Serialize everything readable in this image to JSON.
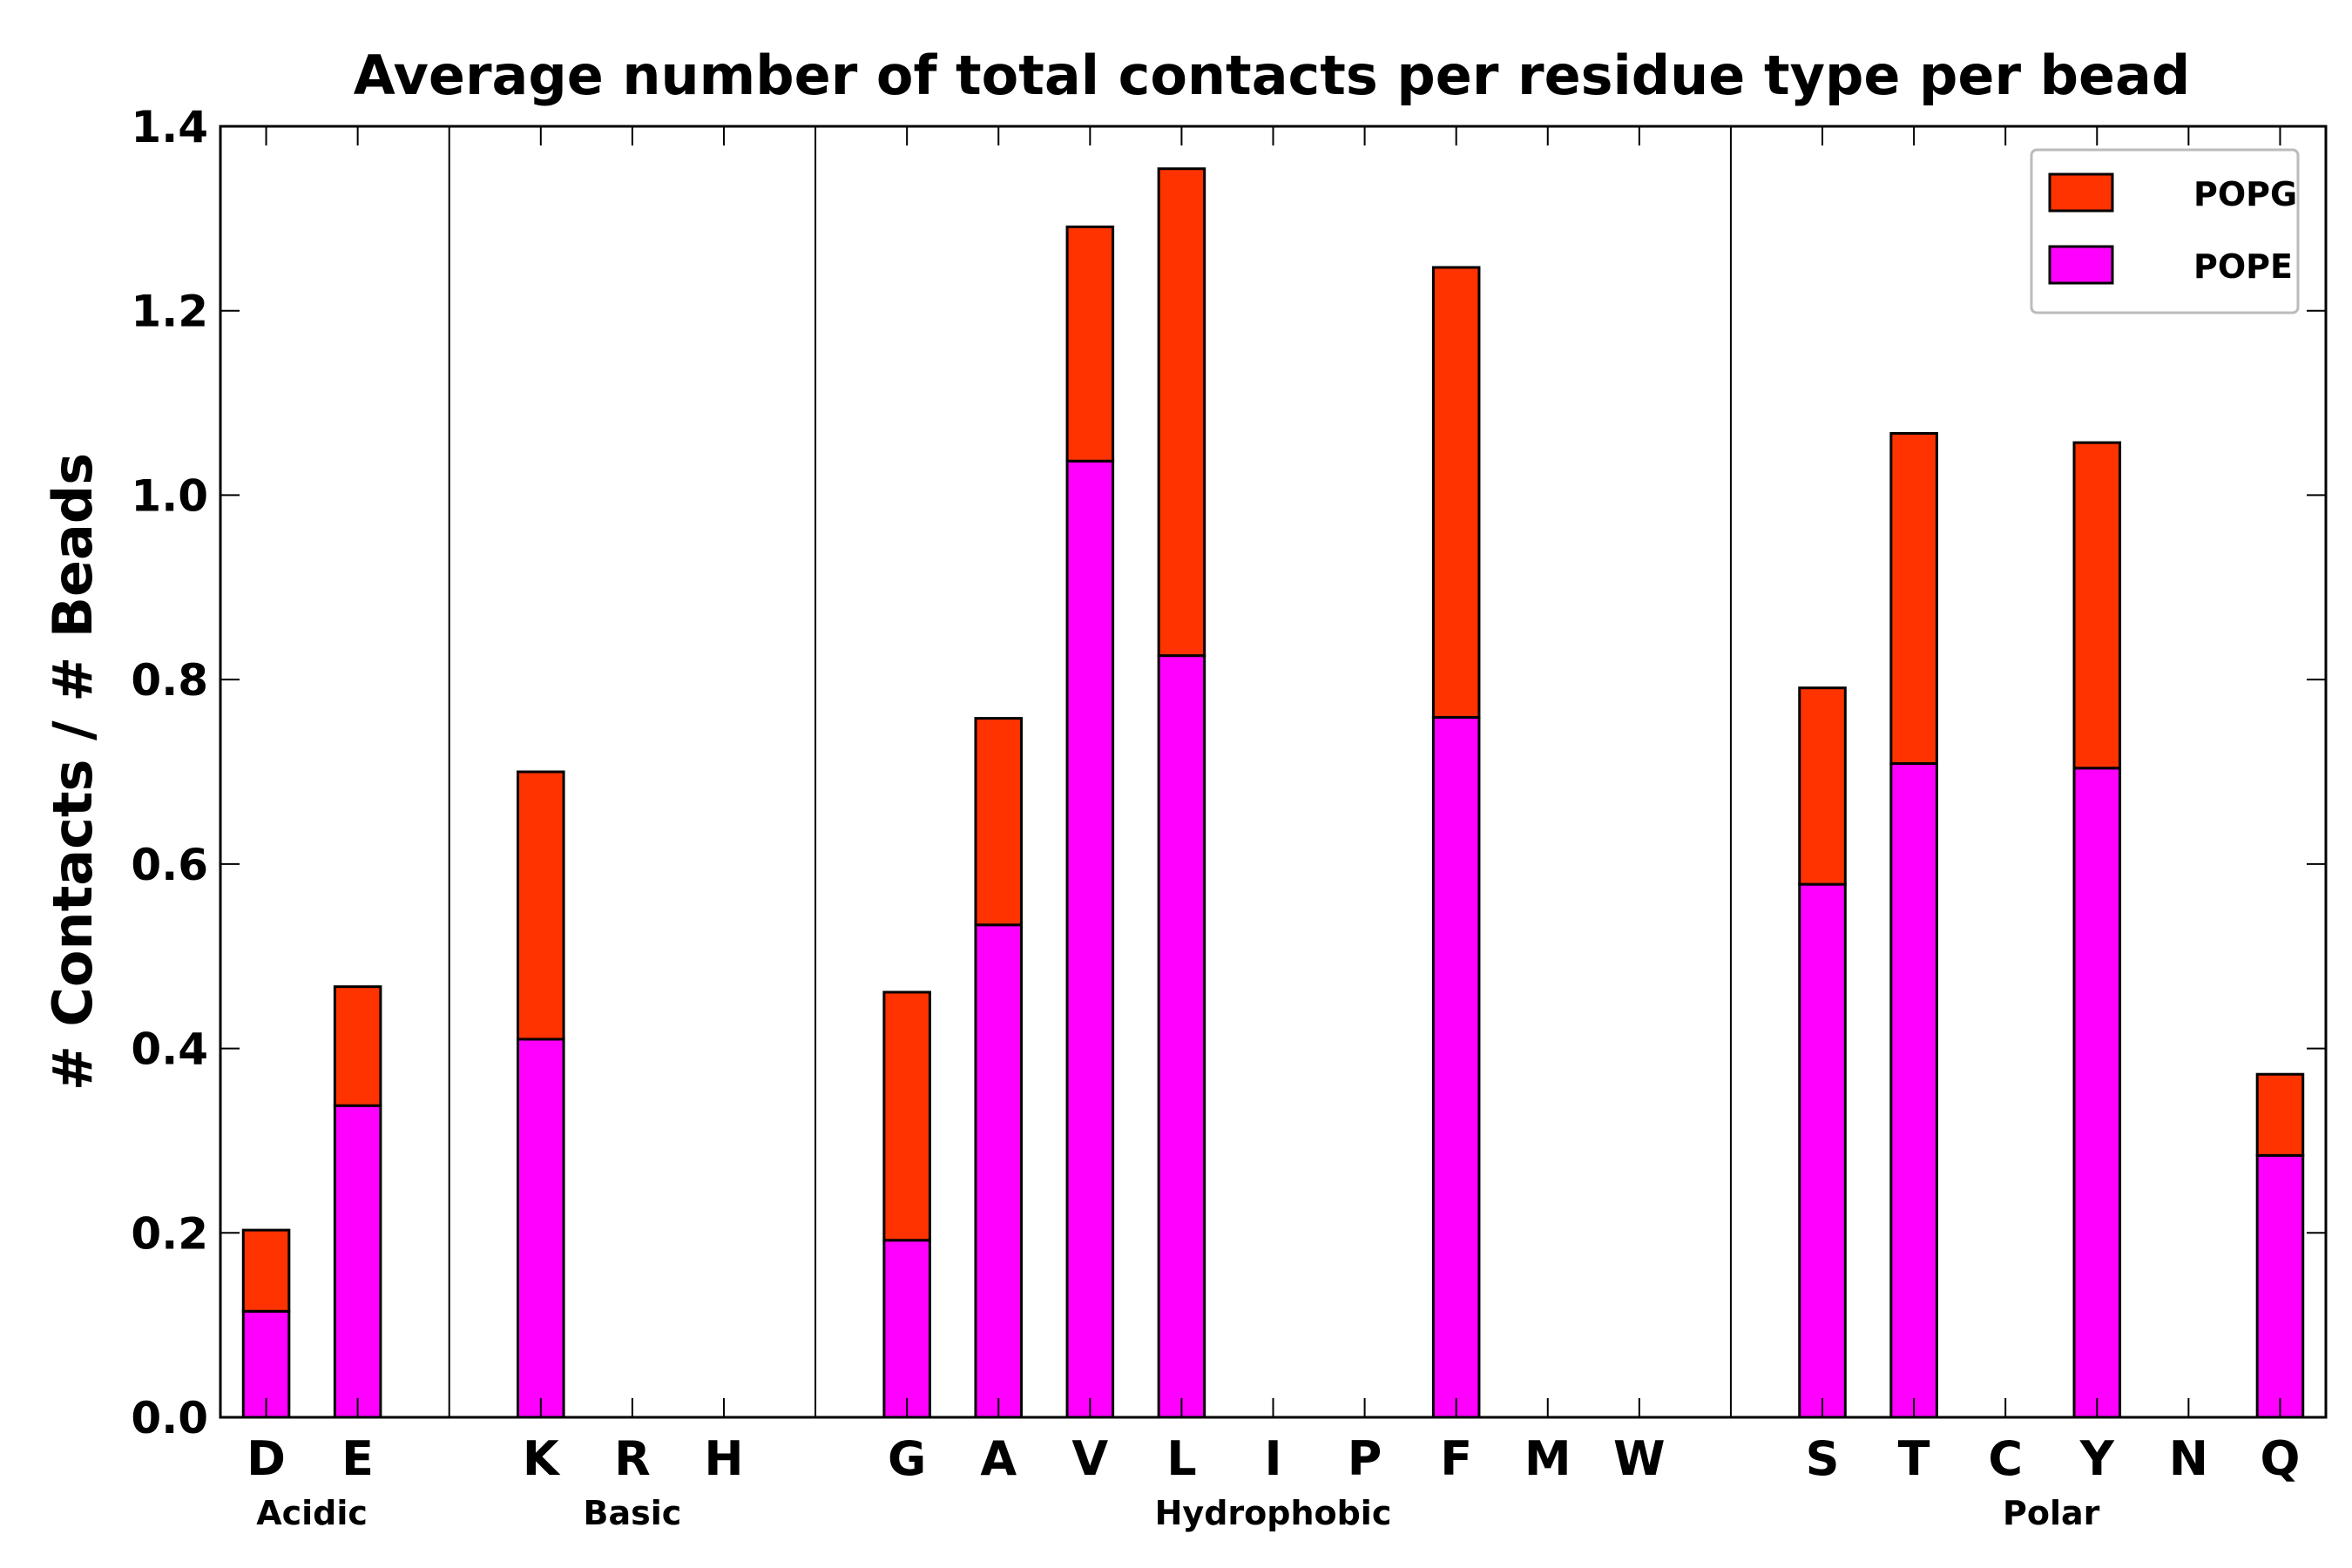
{
  "chart_data": {
    "type": "bar",
    "stacked": true,
    "title": "Average number of total contacts per residue type per bead",
    "xlabel": "",
    "ylabel": "# Contacts / # Beads",
    "ylim": [
      0,
      1.4
    ],
    "yticks": [
      0.0,
      0.2,
      0.4,
      0.6,
      0.8,
      1.0,
      1.2,
      1.4
    ],
    "ytick_labels": [
      "0.0",
      "0.2",
      "0.4",
      "0.6",
      "0.8",
      "1.0",
      "1.2",
      "1.4"
    ],
    "grid": false,
    "legend_position": "top-right",
    "slots": [
      "D",
      "E",
      "",
      "K",
      "R",
      "H",
      "",
      "G",
      "A",
      "V",
      "L",
      "I",
      "P",
      "F",
      "M",
      "W",
      "",
      "S",
      "T",
      "C",
      "Y",
      "N",
      "Q"
    ],
    "categories": [
      "D",
      "E",
      "K",
      "R",
      "H",
      "G",
      "A",
      "V",
      "L",
      "I",
      "P",
      "F",
      "M",
      "W",
      "S",
      "T",
      "C",
      "Y",
      "N",
      "Q"
    ],
    "series": [
      {
        "name": "POPE",
        "color": "#ff00ff",
        "values": [
          0.115,
          0.338,
          0.41,
          0,
          0,
          0.192,
          0.534,
          1.037,
          0.826,
          0,
          0,
          0.759,
          0,
          0,
          0.578,
          0.709,
          0,
          0.704,
          0,
          0.284
        ]
      },
      {
        "name": "POPG",
        "color": "#ff3300",
        "values": [
          0.088,
          0.129,
          0.29,
          0,
          0,
          0.269,
          0.224,
          0.254,
          0.528,
          0,
          0,
          0.488,
          0,
          0,
          0.213,
          0.358,
          0,
          0.353,
          0,
          0.088
        ]
      }
    ],
    "legend_order": [
      "POPG",
      "POPE"
    ],
    "groups": [
      {
        "label": "Acidic",
        "members": [
          "D",
          "E"
        ]
      },
      {
        "label": "Basic",
        "members": [
          "K",
          "R",
          "H"
        ]
      },
      {
        "label": "Hydrophobic",
        "members": [
          "G",
          "A",
          "V",
          "L",
          "I",
          "P",
          "F",
          "M",
          "W"
        ]
      },
      {
        "label": "Polar",
        "members": [
          "S",
          "T",
          "C",
          "Y",
          "N",
          "Q"
        ]
      }
    ],
    "separators_after": [
      "E",
      "H",
      "W"
    ]
  }
}
